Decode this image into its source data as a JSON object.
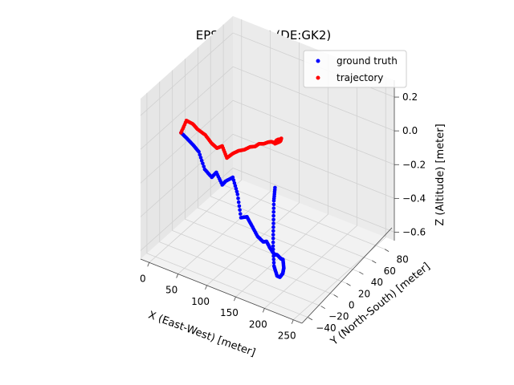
{
  "chart_data": {
    "type": "scatter",
    "projection": "3d",
    "title": "EPSG_31466 (DE:GK2)",
    "xlabel": "X (East-West) [meter]",
    "ylabel": "Y (North-South) [meter]",
    "zlabel": "Z (Altitude) [meter]",
    "xlim": [
      -15,
      265
    ],
    "ylim": [
      -50,
      95
    ],
    "zlim": [
      -0.65,
      0.3
    ],
    "x_ticks": [
      0,
      50,
      100,
      150,
      200,
      250
    ],
    "y_ticks": [
      -40,
      -20,
      0,
      20,
      40,
      60,
      80
    ],
    "z_ticks": [
      -0.6,
      -0.4,
      -0.2,
      0.0,
      0.2
    ],
    "x_tick_labels": [
      "0",
      "50",
      "100",
      "150",
      "200",
      "250"
    ],
    "y_tick_labels": [
      "−40",
      "−20",
      "0",
      "20",
      "40",
      "60",
      "80"
    ],
    "z_tick_labels": [
      "−0.6",
      "−0.4",
      "−0.2",
      "0.0",
      "0.2"
    ],
    "grid": true,
    "legend_position": "top-right",
    "series": [
      {
        "name": "ground truth",
        "color": "#0000ff",
        "points": [
          [
            0,
            0,
            -0.05
          ],
          [
            8,
            2,
            -0.08
          ],
          [
            16,
            5,
            -0.12
          ],
          [
            22,
            8,
            -0.16
          ],
          [
            30,
            10,
            -0.26
          ],
          [
            40,
            12,
            -0.3
          ],
          [
            48,
            12,
            -0.26
          ],
          [
            56,
            14,
            -0.33
          ],
          [
            62,
            14,
            -0.3
          ],
          [
            70,
            18,
            -0.28
          ],
          [
            76,
            20,
            -0.38
          ],
          [
            84,
            18,
            -0.5
          ],
          [
            90,
            22,
            -0.5
          ],
          [
            96,
            24,
            -0.55
          ],
          [
            106,
            24,
            -0.6
          ],
          [
            116,
            24,
            -0.62
          ],
          [
            124,
            22,
            -0.6
          ],
          [
            132,
            20,
            -0.62
          ],
          [
            142,
            18,
            -0.64
          ],
          [
            150,
            15,
            -0.62
          ],
          [
            160,
            12,
            -0.62
          ],
          [
            168,
            8,
            -0.6
          ],
          [
            176,
            2,
            -0.62
          ],
          [
            182,
            -5,
            -0.62
          ],
          [
            188,
            -15,
            -0.6
          ],
          [
            194,
            -25,
            -0.55
          ],
          [
            200,
            -35,
            -0.45
          ],
          [
            206,
            -42,
            -0.3
          ],
          [
            210,
            -45,
            -0.15
          ],
          [
            214,
            -48,
            0.0
          ],
          [
            216,
            -48,
            0.08
          ]
        ]
      },
      {
        "name": "trajectory",
        "color": "#ff0000",
        "points": [
          [
            0,
            0,
            -0.05
          ],
          [
            6,
            3,
            0.02
          ],
          [
            14,
            6,
            0.0
          ],
          [
            20,
            8,
            -0.03
          ],
          [
            30,
            11,
            -0.06
          ],
          [
            40,
            12,
            -0.1
          ],
          [
            48,
            13,
            -0.12
          ],
          [
            56,
            14,
            -0.1
          ],
          [
            64,
            14,
            -0.16
          ],
          [
            72,
            16,
            -0.13
          ],
          [
            82,
            16,
            -0.1
          ],
          [
            92,
            16,
            -0.08
          ],
          [
            102,
            16,
            -0.05
          ],
          [
            112,
            15,
            -0.03
          ],
          [
            120,
            14,
            0.0
          ],
          [
            130,
            12,
            0.02
          ],
          [
            140,
            10,
            0.05
          ],
          [
            150,
            6,
            0.08
          ],
          [
            160,
            2,
            0.1
          ],
          [
            168,
            -2,
            0.14
          ],
          [
            176,
            -6,
            0.17
          ],
          [
            186,
            -12,
            0.2
          ],
          [
            196,
            -20,
            0.25
          ],
          [
            204,
            -28,
            0.28
          ],
          [
            210,
            -34,
            0.3
          ],
          [
            214,
            -40,
            0.32
          ],
          [
            216,
            -48,
            0.34
          ]
        ]
      }
    ]
  }
}
